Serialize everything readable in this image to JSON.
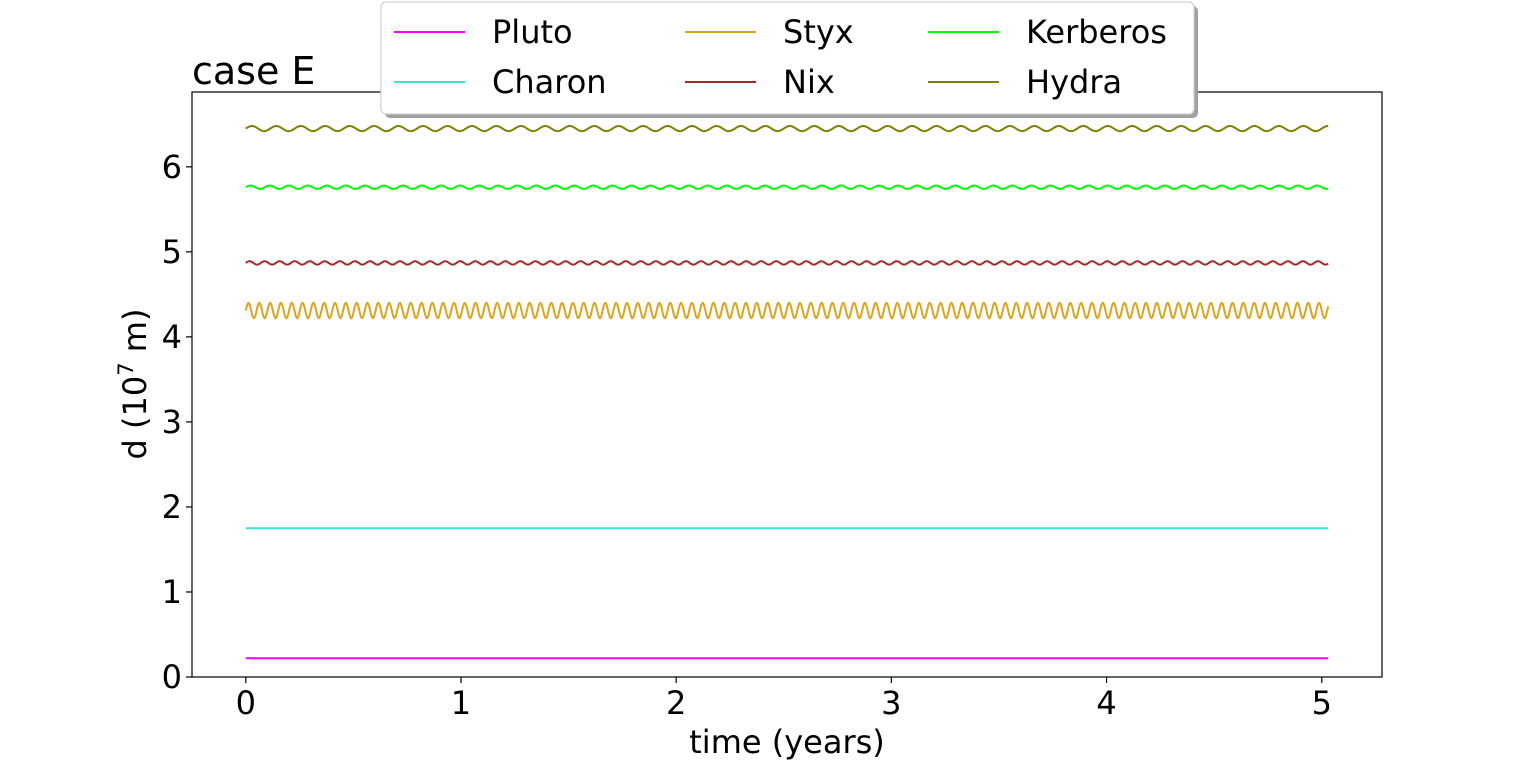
{
  "chart_data": {
    "type": "line",
    "title": "case E",
    "xlabel": "time (years)",
    "ylabel_prefix": "d (10",
    "ylabel_exponent": "7",
    "ylabel_suffix": " m)",
    "xlim": [
      -0.25,
      5.28
    ],
    "ylim": [
      0,
      6.88
    ],
    "xticks": [
      0,
      1,
      2,
      3,
      4,
      5
    ],
    "yticks": [
      0,
      1,
      2,
      3,
      4,
      5,
      6
    ],
    "x_range": [
      0,
      5.03
    ],
    "legend_position": "top-center",
    "legend_columns": 3,
    "series": [
      {
        "name": "Pluto",
        "color": "#ff00ff",
        "mean": 0.22,
        "amplitude": 0.0,
        "cycles_per_year": 0
      },
      {
        "name": "Charon",
        "color": "#40e0d0",
        "mean": 1.75,
        "amplitude": 0.0,
        "cycles_per_year": 0
      },
      {
        "name": "Styx",
        "color": "#daa520",
        "mean": 4.31,
        "amplitude": 0.09,
        "cycles_per_year": 19.9
      },
      {
        "name": "Nix",
        "color": "#a52a2a",
        "mean": 4.87,
        "amplitude": 0.02,
        "cycles_per_year": 14.3
      },
      {
        "name": "Kerberos",
        "color": "#00ff00",
        "mean": 5.76,
        "amplitude": 0.02,
        "cycles_per_year": 11.3
      },
      {
        "name": "Hydra",
        "color": "#808000",
        "mean": 6.45,
        "amplitude": 0.03,
        "cycles_per_year": 8.8
      }
    ]
  }
}
